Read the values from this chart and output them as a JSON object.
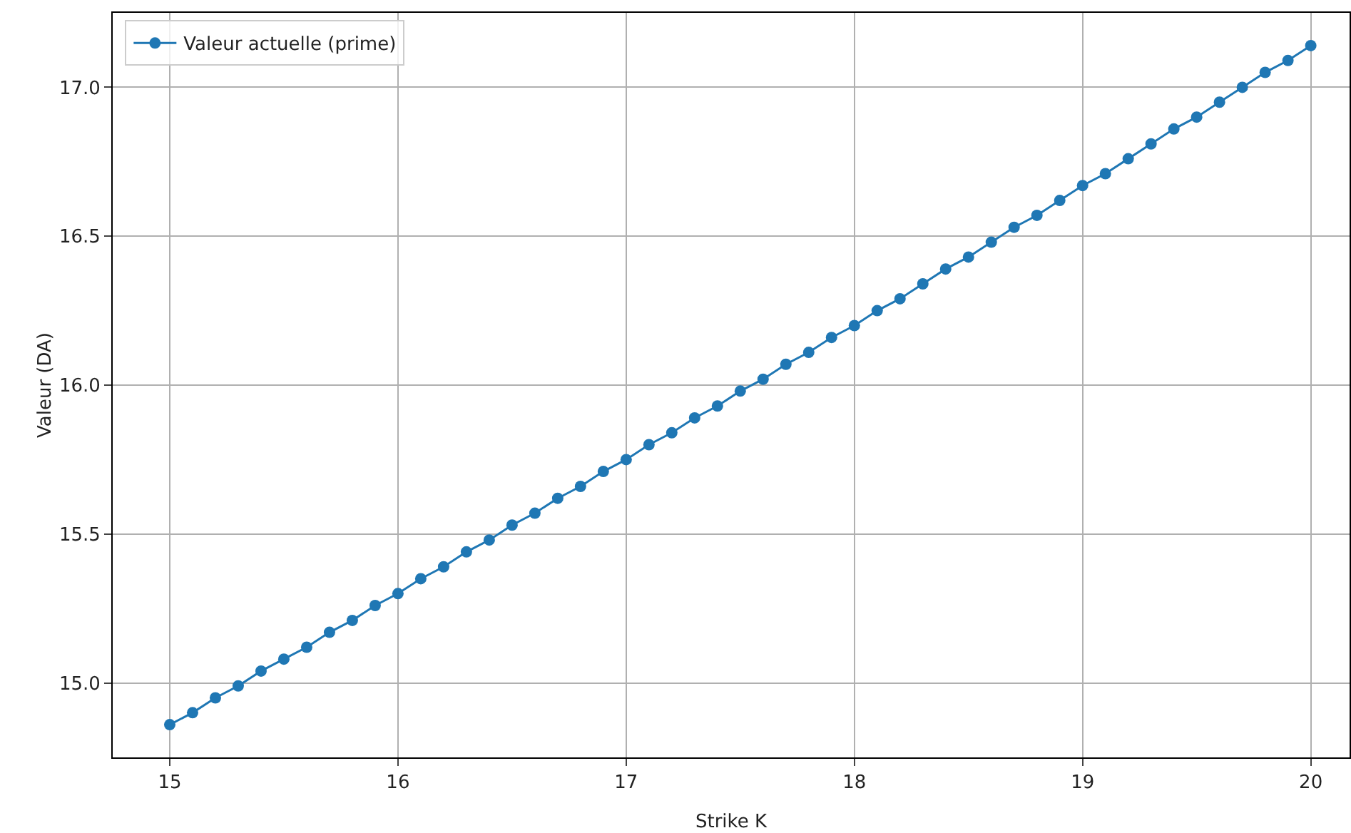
{
  "chart_data": {
    "type": "line",
    "xlabel": "Strike K",
    "ylabel": "Valeur (DA)",
    "x": [
      15,
      15.1,
      15.2,
      15.3,
      15.4,
      15.5,
      15.6,
      15.7,
      15.8,
      15.9,
      16,
      16.1,
      16.2,
      16.3,
      16.4,
      16.5,
      16.6,
      16.7,
      16.8,
      16.9,
      17,
      17.1,
      17.2,
      17.3,
      17.4,
      17.5,
      17.6,
      17.7,
      17.8,
      17.9,
      18,
      18.1,
      18.2,
      18.3,
      18.4,
      18.5,
      18.6,
      18.7,
      18.8,
      18.9,
      19,
      19.1,
      19.2,
      19.3,
      19.4,
      19.5,
      19.6,
      19.7,
      19.8,
      19.9,
      20
    ],
    "series": [
      {
        "name": "Valeur actuelle (prime)",
        "color": "#1f77b4",
        "values": [
          14.86,
          14.9,
          14.95,
          14.99,
          15.04,
          15.08,
          15.12,
          15.17,
          15.21,
          15.26,
          15.3,
          15.35,
          15.39,
          15.44,
          15.48,
          15.53,
          15.57,
          15.62,
          15.66,
          15.71,
          15.75,
          15.8,
          15.84,
          15.89,
          15.93,
          15.98,
          16.02,
          16.07,
          16.11,
          16.16,
          16.2,
          16.25,
          16.29,
          16.34,
          16.39,
          16.43,
          16.48,
          16.53,
          16.57,
          16.62,
          16.67,
          16.71,
          16.76,
          16.81,
          16.86,
          16.9,
          16.95,
          17.0,
          17.05,
          17.09,
          17.14
        ]
      }
    ],
    "xlim": [
      14.75,
      20.17
    ],
    "xticks": [
      15,
      16,
      17,
      18,
      19,
      20
    ],
    "ylim": [
      14.75,
      17.25
    ],
    "yticks": [
      {
        "value": 15,
        "label": "15.0"
      },
      {
        "value": 15.5,
        "label": "15.5"
      },
      {
        "value": 16,
        "label": "16.0"
      },
      {
        "value": 16.5,
        "label": "16.5"
      },
      {
        "value": 17,
        "label": "17.0"
      }
    ],
    "grid": true,
    "legend": "top left",
    "marker": "circle",
    "line_style": "solid"
  }
}
